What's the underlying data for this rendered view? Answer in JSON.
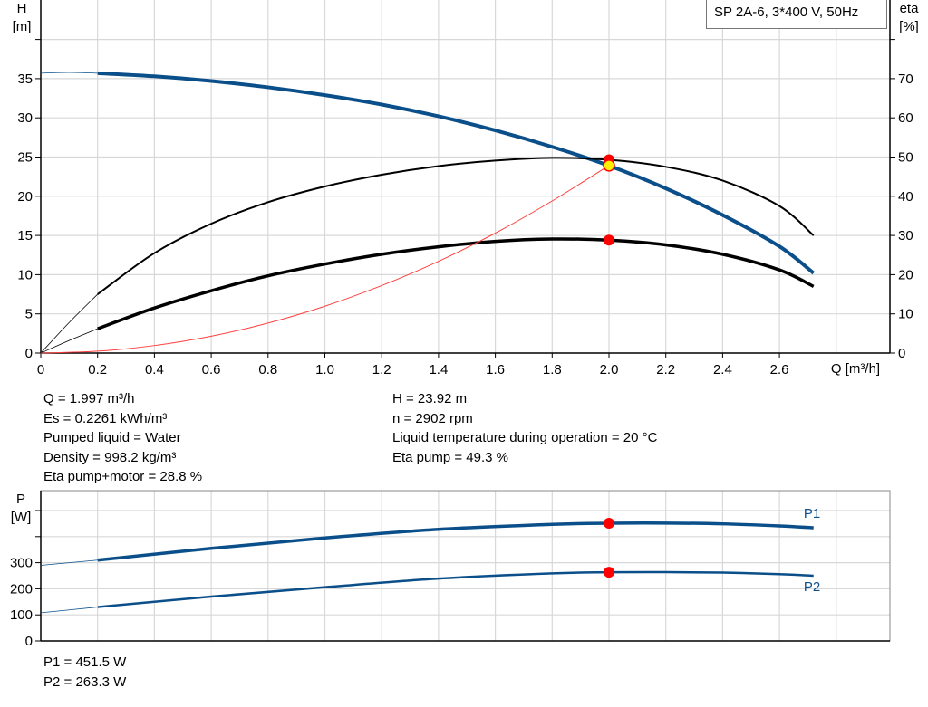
{
  "legend": "SP 2A-6, 3*400 V, 50Hz",
  "info_left": [
    "Q = 1.997 m³/h",
    "Es = 0.2261 kWh/m³",
    "Pumped liquid = Water",
    "Density = 998.2 kg/m³",
    "Eta pump+motor = 28.8 %"
  ],
  "info_right": [
    "H = 23.92 m",
    "n = 2902 rpm",
    "Liquid temperature during operation = 20 °C",
    "Eta pump = 49.3 %"
  ],
  "info_power": [
    "P1 = 451.5 W",
    "P2 = 263.3 W"
  ],
  "colors": {
    "qh": "#0b4f8a",
    "eta": "#000000",
    "system": "#ff4040",
    "power": "#0b4f8a",
    "point": "#ff0000",
    "duty": "#ffee00",
    "grid": "#d8d8d8"
  },
  "chart_data": [
    {
      "type": "line",
      "xlabel": "Q [m³/h]",
      "ylabel": "H [m]",
      "ylabel_name": "H",
      "ylabel_unit": "[m]",
      "y2label_name": "eta",
      "y2label_unit": "[%]",
      "xlim": [
        0,
        2.8
      ],
      "ylim": [
        0,
        45
      ],
      "y2lim": [
        0,
        90
      ],
      "xticks": [
        "0",
        "0.2",
        "0.4",
        "0.6",
        "0.8",
        "1.0",
        "1.2",
        "1.4",
        "1.6",
        "1.8",
        "2.0",
        "2.2",
        "2.4",
        "2.6"
      ],
      "yticks": [
        "0",
        "5",
        "10",
        "15",
        "20",
        "25",
        "30",
        "35"
      ],
      "y2ticks": [
        "0",
        "10",
        "20",
        "30",
        "40",
        "50",
        "60",
        "70"
      ],
      "grid": true,
      "series": [
        {
          "key": "qh",
          "axis": "H",
          "thin_until": 0.2,
          "x": [
            0,
            0.1,
            0.2,
            0.4,
            0.6,
            0.8,
            1.0,
            1.2,
            1.4,
            1.6,
            1.8,
            2.0,
            2.2,
            2.4,
            2.6,
            2.72
          ],
          "y": [
            35.7,
            35.8,
            35.7,
            35.3,
            34.7,
            33.9,
            32.9,
            31.7,
            30.2,
            28.4,
            26.3,
            23.9,
            21.0,
            17.6,
            13.6,
            10.2
          ]
        },
        {
          "key": "eta_pump",
          "axis": "eta",
          "thin_until": 0.2,
          "x": [
            0,
            0.1,
            0.2,
            0.4,
            0.6,
            0.8,
            1.0,
            1.2,
            1.4,
            1.6,
            1.8,
            2.0,
            2.2,
            2.4,
            2.6,
            2.72
          ],
          "y": [
            0,
            7.8,
            15,
            25.5,
            33,
            38.5,
            42.5,
            45.5,
            47.7,
            49.1,
            49.8,
            49.3,
            47.5,
            44,
            37.5,
            30
          ]
        },
        {
          "key": "eta_total",
          "axis": "eta",
          "thin_until": 0.2,
          "x": [
            0,
            0.1,
            0.2,
            0.4,
            0.6,
            0.8,
            1.0,
            1.2,
            1.4,
            1.6,
            1.8,
            2.0,
            2.2,
            2.4,
            2.6,
            2.72
          ],
          "y": [
            0,
            3.2,
            6.2,
            11.5,
            15.9,
            19.7,
            22.7,
            25.2,
            27.1,
            28.5,
            29.1,
            28.8,
            27.6,
            25.2,
            21.2,
            17
          ]
        },
        {
          "key": "system",
          "axis": "H",
          "x": [
            0,
            0.2,
            0.4,
            0.6,
            0.8,
            1.0,
            1.2,
            1.4,
            1.6,
            1.8,
            2.0
          ],
          "y": [
            0,
            0.24,
            0.96,
            2.15,
            3.83,
            5.98,
            8.61,
            11.7,
            15.3,
            19.4,
            23.92
          ]
        }
      ],
      "points": [
        {
          "axis": "eta",
          "x": 2.0,
          "y": 49.3,
          "style": "red"
        },
        {
          "axis": "H",
          "x": 2.0,
          "y": 23.92,
          "style": "duty"
        },
        {
          "axis": "eta",
          "x": 2.0,
          "y": 28.8,
          "style": "red"
        }
      ]
    },
    {
      "type": "line",
      "ylabel_name": "P",
      "ylabel_unit": "[W]",
      "xlim": [
        0,
        2.8
      ],
      "ylim": [
        0,
        576
      ],
      "yticks": [
        "0",
        "100",
        "200",
        "300"
      ],
      "grid": true,
      "series": [
        {
          "key": "p1",
          "name": "P1",
          "thin_until": 0.2,
          "x": [
            0,
            0.2,
            0.6,
            1.0,
            1.4,
            1.8,
            2.0,
            2.2,
            2.4,
            2.6,
            2.72
          ],
          "y": [
            290,
            310,
            355,
            395,
            428,
            447,
            451.5,
            452,
            449,
            441,
            434
          ]
        },
        {
          "key": "p2",
          "name": "P2",
          "thin_until": 0.2,
          "x": [
            0,
            0.2,
            0.6,
            1.0,
            1.4,
            1.8,
            2.0,
            2.2,
            2.4,
            2.6,
            2.72
          ],
          "y": [
            108,
            130,
            170,
            206,
            239,
            259,
            263.3,
            264,
            262,
            256,
            250
          ]
        }
      ],
      "points": [
        {
          "x": 2.0,
          "y": 451.5,
          "style": "red"
        },
        {
          "x": 2.0,
          "y": 263.3,
          "style": "red"
        }
      ]
    }
  ]
}
